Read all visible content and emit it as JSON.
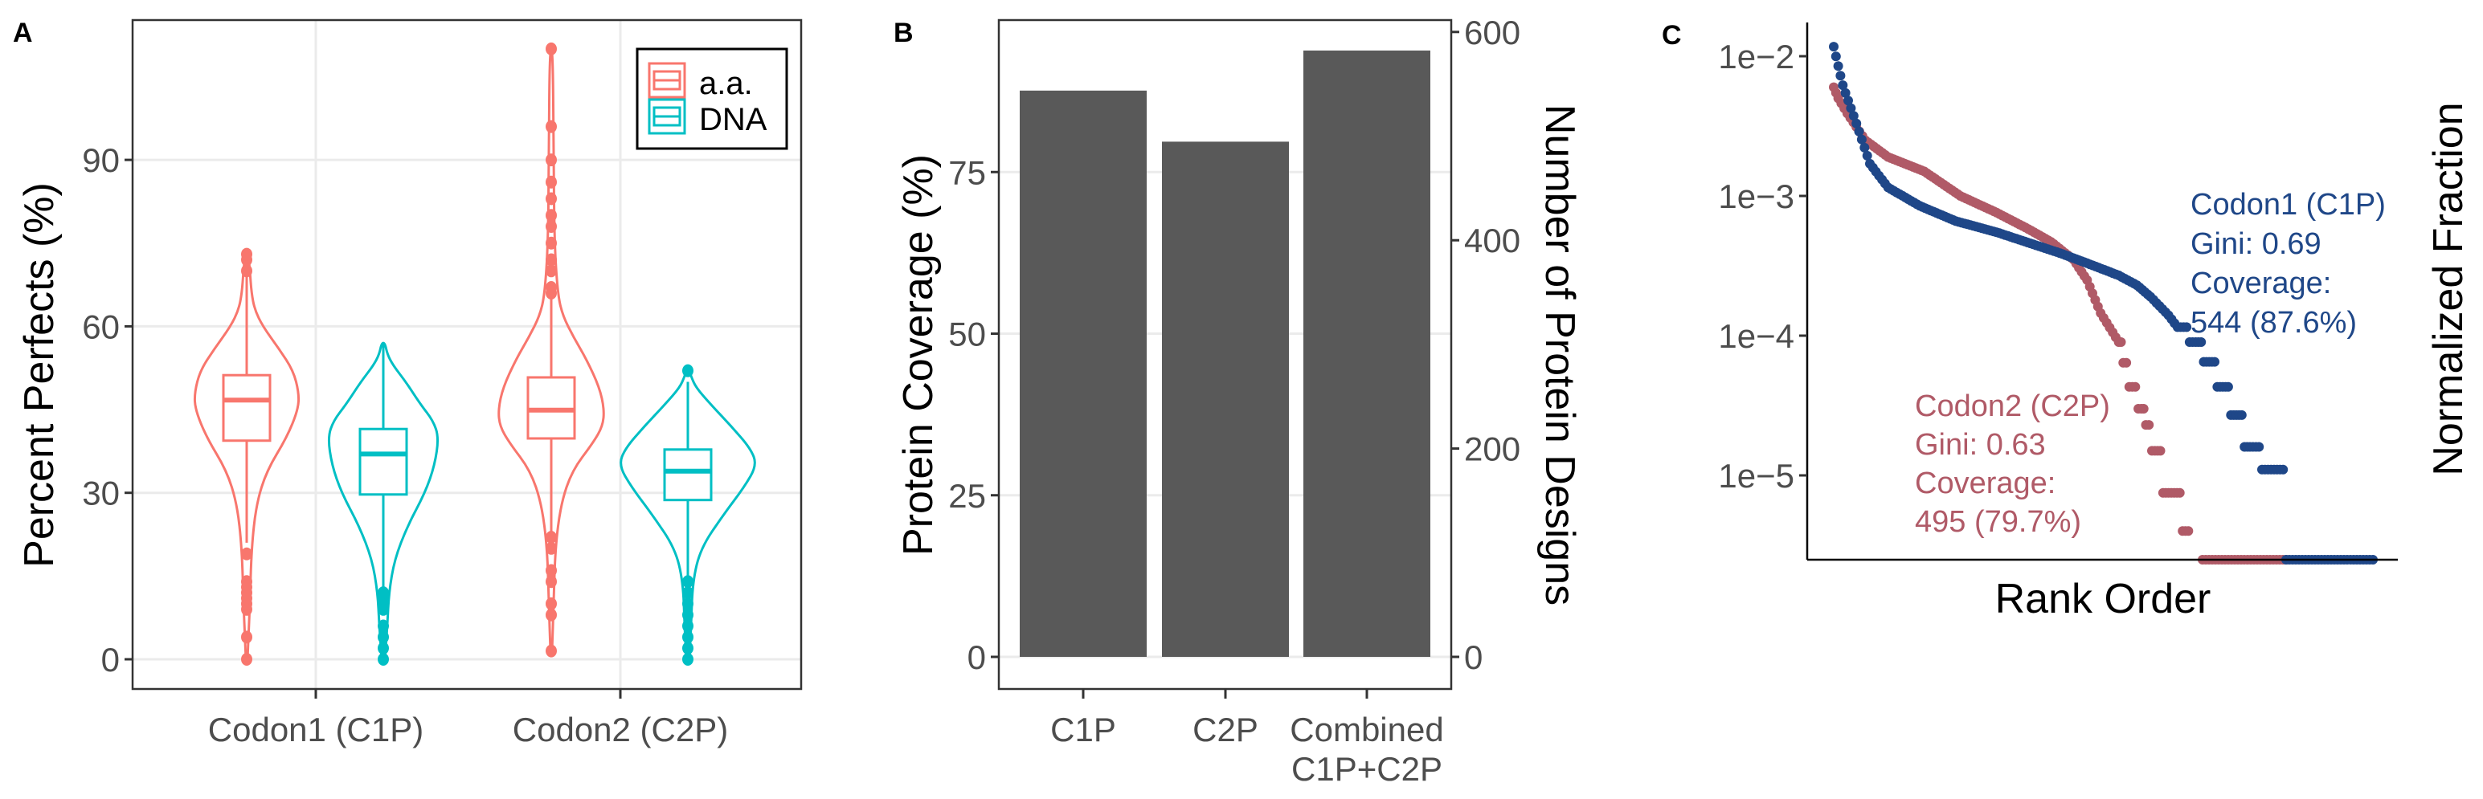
{
  "figure": {
    "panels": [
      "A",
      "B",
      "C"
    ]
  },
  "colors": {
    "aa": "#F8766D",
    "dna": "#00BFC4",
    "bar": "#595959",
    "c1p": "#1F4788",
    "c2p": "#B05A67",
    "grid": "#EBEBEB",
    "tick_text": "#4D4D4D"
  },
  "panelA": {
    "label": "A",
    "ylabel": "Percent Perfects (%)",
    "yticks": [
      "0",
      "30",
      "60",
      "90"
    ],
    "categories": [
      "Codon1 (C1P)",
      "Codon2 (C2P)"
    ],
    "legend": [
      {
        "label": "a.a.",
        "icon": "boxplot-swatch-icon"
      },
      {
        "label": "DNA",
        "icon": "boxplot-swatch-icon"
      }
    ]
  },
  "panelB": {
    "label": "B",
    "ylabel_left": "Protein Coverage (%)",
    "ylabel_right": "Number of Protein Designs",
    "yticks_left": [
      "0",
      "25",
      "50",
      "75"
    ],
    "yticks_right": [
      "0",
      "200",
      "400",
      "600"
    ],
    "categories": [
      "C1P",
      "C2P",
      "Combined",
      "C1P+C2P"
    ]
  },
  "panelC": {
    "label": "C",
    "xlabel": "Rank Order",
    "ylabel": "Normalized Fraction",
    "yticks": [
      "1e−2",
      "1e−3",
      "1e−4",
      "1e−5"
    ],
    "c1p_annotation": [
      "Codon1 (C1P)",
      "Gini: 0.69",
      "Coverage:",
      "544 (87.6%)"
    ],
    "c2p_annotation": [
      "Codon2 (C2P)",
      "Gini: 0.63",
      "Coverage:",
      "495 (79.7%)"
    ]
  },
  "chart_data": [
    {
      "type": "violin",
      "panel": "A",
      "title": "",
      "xlabel": "",
      "ylabel": "Percent Perfects (%)",
      "ylim": [
        -5,
        117
      ],
      "grid": true,
      "legend_position": "top-right inside",
      "categories": [
        "Codon1 (C1P)",
        "Codon2 (C2P)"
      ],
      "series": [
        {
          "name": "a.a.",
          "color": "#F8766D",
          "boxes": [
            {
              "category": "Codon1 (C1P)",
              "q1": 39.4,
              "median": 46.7,
              "q3": 51.2,
              "whisker_low": 21,
              "whisker_high": 69,
              "max": 73,
              "min": 0
            },
            {
              "category": "Codon2 (C2P)",
              "q1": 39.8,
              "median": 44.9,
              "q3": 50.8,
              "whisker_low": 23,
              "whisker_high": 66,
              "max": 110,
              "min": 1.5
            }
          ]
        },
        {
          "name": "DNA",
          "color": "#00BFC4",
          "boxes": [
            {
              "category": "Codon1 (C1P)",
              "q1": 29.7,
              "median": 37.0,
              "q3": 41.5,
              "whisker_low": 12,
              "whisker_high": 57,
              "max": 57,
              "min": 0
            },
            {
              "category": "Codon2 (C2P)",
              "q1": 28.7,
              "median": 33.9,
              "q3": 37.8,
              "whisker_low": 15,
              "whisker_high": 50,
              "max": 52,
              "min": 0
            }
          ]
        }
      ]
    },
    {
      "type": "bar",
      "panel": "B",
      "title": "",
      "categories": [
        "C1P",
        "C2P",
        "Combined C1P+C2P"
      ],
      "values": [
        87.6,
        79.7,
        93.8
      ],
      "secondary_values": [
        544,
        495,
        582
      ],
      "ylabel": "Protein Coverage (%)",
      "ylabel_secondary": "Number of Protein Designs",
      "ylim": [
        -5,
        97
      ],
      "ylim_secondary": [
        -31,
        602
      ],
      "grid": true
    },
    {
      "type": "scatter",
      "panel": "C",
      "title": "",
      "xlabel": "Rank Order",
      "ylabel": "Normalized Fraction",
      "yscale": "log",
      "ylim": [
        2.4e-06,
        0.016
      ],
      "yticks": [
        0.01,
        0.001,
        0.0001,
        1e-05
      ],
      "grid": false,
      "series": [
        {
          "name": "Codon1 (C1P)",
          "color": "#1F4788",
          "gini": 0.69,
          "coverage_count": 544,
          "coverage_pct": 87.6,
          "x_rank_frac": [
            0.0,
            0.01,
            0.02,
            0.05,
            0.08,
            0.12,
            0.19,
            0.27,
            0.36,
            0.46,
            0.5,
            0.56,
            0.63,
            0.67,
            0.7,
            0.74,
            0.76,
            0.8,
            0.83,
            0.86,
            0.89,
            0.92,
            0.96,
            1.0,
            1.17
          ],
          "y": [
            0.0117,
            0.0085,
            0.0062,
            0.0033,
            0.0017,
            0.00115,
            0.00085,
            0.00066,
            0.00055,
            0.00043,
            0.00039,
            0.00033,
            0.00027,
            0.00023,
            0.00019,
            0.00014,
            0.000115,
            9e-05,
            6.5e-05,
            4.3e-05,
            2.7e-05,
            1.6e-05,
            1.1e-05,
            1.1e-05,
            0
          ]
        },
        {
          "name": "Codon2 (C2P)",
          "color": "#B05A67",
          "gini": 0.63,
          "coverage_count": 495,
          "coverage_pct": 79.7,
          "x_rank_frac": [
            0.0,
            0.01,
            0.03,
            0.07,
            0.12,
            0.2,
            0.28,
            0.36,
            0.43,
            0.48,
            0.53,
            0.56,
            0.59,
            0.63,
            0.64,
            0.66,
            0.68,
            0.69,
            0.71,
            0.74,
            0.79,
            0.98
          ],
          "y": [
            0.006,
            0.005,
            0.0039,
            0.0025,
            0.0019,
            0.0015,
            0.001,
            0.00076,
            0.00058,
            0.00047,
            0.00035,
            0.00025,
            0.000145,
            9e-05,
            6.4e-05,
            4.3e-05,
            3e-05,
            2.3e-05,
            1.5e-05,
            7.5e-06,
            4e-06,
            0
          ]
        }
      ]
    }
  ]
}
